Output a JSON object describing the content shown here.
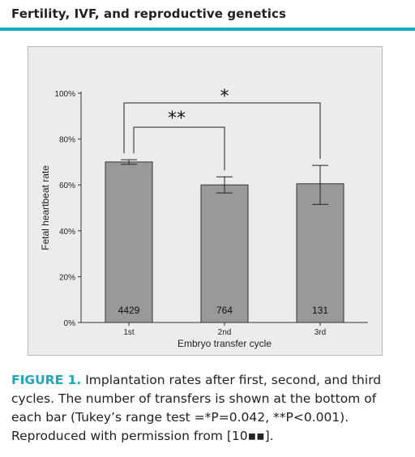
{
  "header": {
    "section_title": "Fertility, IVF, and reproductive genetics",
    "accent_color": "#1aa7c4"
  },
  "chart_data": {
    "type": "bar",
    "categories": [
      "1st",
      "2nd",
      "3rd"
    ],
    "values": [
      70,
      60,
      60.5
    ],
    "errors": [
      [
        69,
        71
      ],
      [
        56.5,
        63.5
      ],
      [
        51.5,
        68.5
      ]
    ],
    "bar_labels": [
      "4429",
      "764",
      "131"
    ],
    "xlabel": "Embryo transfer cycle",
    "ylabel": "Fetal heartbeat rate",
    "yticks": [
      "0%",
      "20%",
      "40%",
      "60%",
      "80%",
      "100%"
    ],
    "ylim": [
      0,
      100
    ],
    "bar_color": "#999999",
    "background": "#ececec",
    "grid": false,
    "significance": [
      {
        "from": 0,
        "to": 1,
        "label": "**"
      },
      {
        "from": 0,
        "to": 2,
        "label": "*"
      }
    ]
  },
  "caption": {
    "figure_label": "FIGURE 1.",
    "text": "Implantation rates after first, second, and third cycles. The number of transfers is shown at the bottom of each bar (Tukey’s range test =*P=0.042, **P<0.001). Reproduced with permission from [10▪▪]."
  }
}
